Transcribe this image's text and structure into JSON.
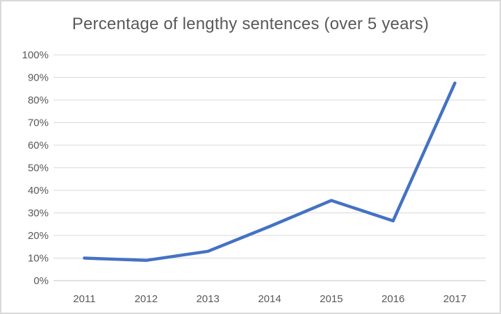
{
  "chart_data": {
    "type": "line",
    "title": "Percentage of lengthy sentences (over 5 years)",
    "categories": [
      "2011",
      "2012",
      "2013",
      "2014",
      "2015",
      "2016",
      "2017"
    ],
    "values": [
      10,
      9,
      13,
      24,
      35.5,
      26.5,
      87.5
    ],
    "xlabel": "",
    "ylabel": "",
    "ylim": [
      0,
      100
    ],
    "ytick_interval": 10,
    "ytick_labels": [
      "0%",
      "10%",
      "20%",
      "30%",
      "40%",
      "50%",
      "60%",
      "70%",
      "80%",
      "90%",
      "100%"
    ],
    "grid": "horizontal",
    "legend": "none",
    "markers": "none",
    "colors": {
      "line": "#4472C4",
      "gridline": "#D9D9D9",
      "axis_line": "#C6C6C6",
      "text": "#595959",
      "border": "#D9D9D9",
      "background": "#FFFFFF"
    }
  }
}
